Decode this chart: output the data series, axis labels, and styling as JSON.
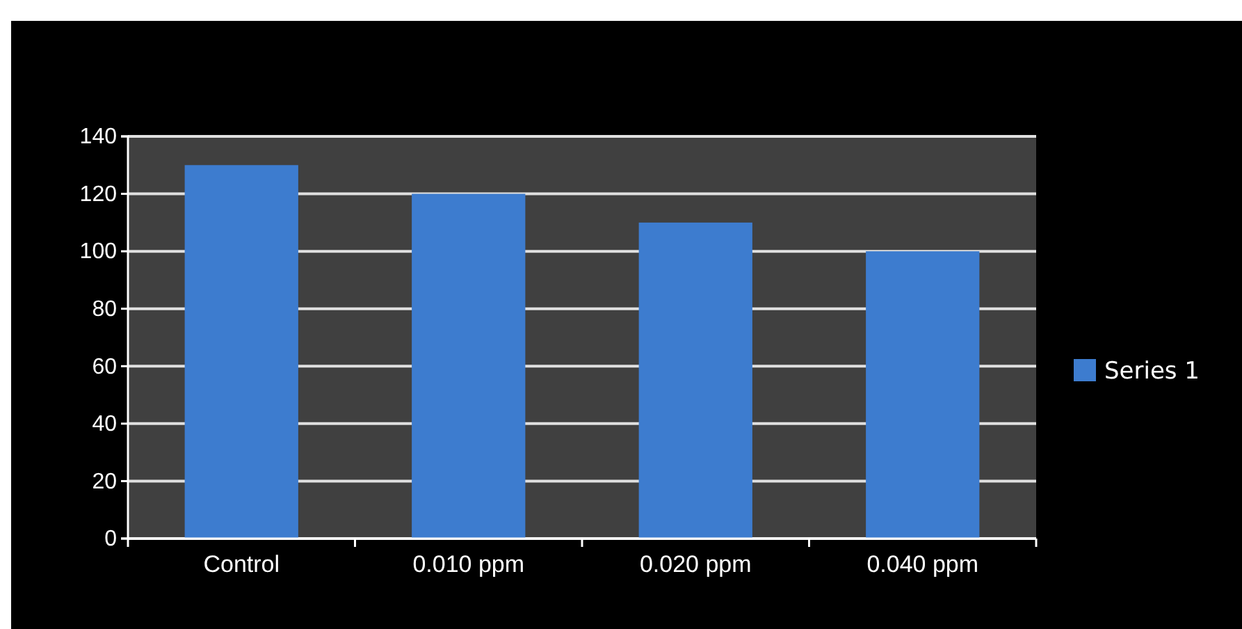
{
  "chart_data": {
    "type": "bar",
    "categories": [
      "Control",
      "0.010 ppm",
      "0.020 ppm",
      "0.040 ppm"
    ],
    "series": [
      {
        "name": "Series 1",
        "color": "#3d7ccf",
        "values": [
          130,
          120,
          110,
          100
        ]
      }
    ],
    "ylim": [
      0,
      140
    ],
    "yticks": [
      0,
      20,
      40,
      60,
      80,
      100,
      120,
      140
    ],
    "grid": "y",
    "legend": "right"
  }
}
